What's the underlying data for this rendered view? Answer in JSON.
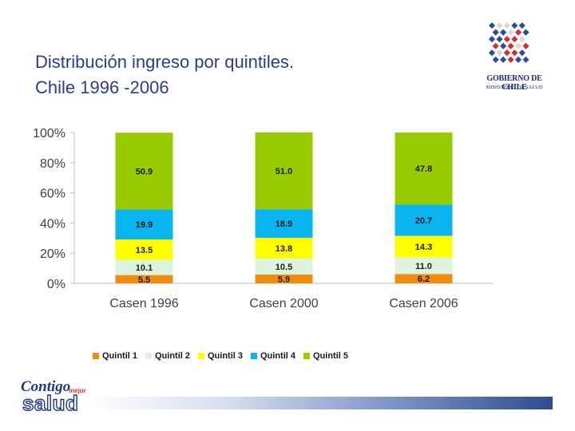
{
  "header": {
    "title_line1": "Distribución ingreso por quintiles.",
    "title_line2": "Chile 1996 -2006"
  },
  "logo": {
    "line1": "GOBIERNO DE CHILE",
    "line2": "MINISTERIO DE SALUD",
    "colors": [
      "#2a4c9c",
      "#d3302d",
      "#d9d9d9"
    ]
  },
  "brand": {
    "word1": "Contigo",
    "word2": "mejor",
    "word3": "salud"
  },
  "chart_data": {
    "type": "bar",
    "stacked": true,
    "categories": [
      "Casen 1996",
      "Casen 2000",
      "Casen 2006"
    ],
    "series": [
      {
        "name": "Quintil 1",
        "color": "#f28c0f",
        "values": [
          5.5,
          5.9,
          6.2
        ]
      },
      {
        "name": "Quintil 2",
        "color": "#ddf5de",
        "values": [
          10.1,
          10.5,
          11.0
        ]
      },
      {
        "name": "Quintil 3",
        "color": "#ffff00",
        "values": [
          13.5,
          13.8,
          14.3
        ]
      },
      {
        "name": "Quintil 4",
        "color": "#0ab4ee",
        "values": [
          19.9,
          18.9,
          20.7
        ]
      },
      {
        "name": "Quintil 5",
        "color": "#99cc00",
        "values": [
          50.9,
          51.0,
          47.8
        ]
      }
    ],
    "value_labels": [
      [
        "5.5",
        "10.1",
        "13.5",
        "19.9",
        "50.9"
      ],
      [
        "5.9",
        "10.5",
        "13.8",
        "18.9",
        "51.0"
      ],
      [
        "6.2",
        "11.0",
        "14.3",
        "20.7",
        "47.8"
      ]
    ],
    "ytick_labels": [
      "0%",
      "20%",
      "40%",
      "60%",
      "80%",
      "100%"
    ],
    "ylim": [
      0,
      100
    ],
    "title": "",
    "xlabel": "",
    "ylabel": "",
    "legend_position": "bottom"
  }
}
